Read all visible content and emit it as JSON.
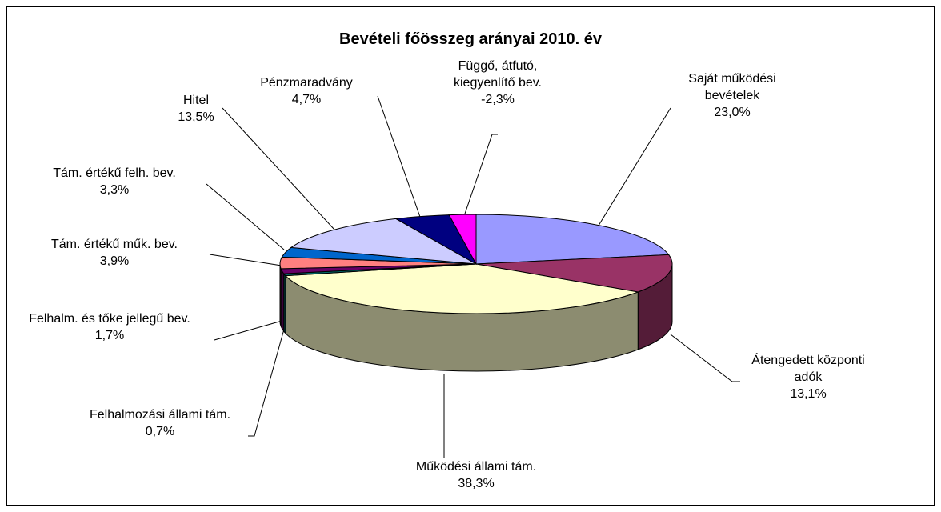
{
  "chart_data": {
    "type": "pie3d",
    "title": "Bevételi főösszeg arányai 2010. év",
    "categories": [
      "Saját működési bevételek",
      "Átengedett központi adók",
      "Működési állami tám.",
      "Felhalmozási állami tám.",
      "Felhalm. és tőke jellegű bev.",
      "Tám. értékű műk. bev.",
      "Tám. értékű felh. bev.",
      "Hitel",
      "Pénzmaradvány",
      "Függő, átfutó, kiegyenlítő bev."
    ],
    "values": [
      23.0,
      13.1,
      38.3,
      0.7,
      1.7,
      3.9,
      3.3,
      13.5,
      4.7,
      -2.3
    ],
    "value_labels": [
      "23,0%",
      "13,1%",
      "38,3%",
      "0,7%",
      "1,7%",
      "3,9%",
      "3,3%",
      "13,5%",
      "4,7%",
      "-2,3%"
    ],
    "colors": [
      "#9999ff",
      "#993366",
      "#ffffcc",
      "#006666",
      "#660066",
      "#ff8080",
      "#0066cc",
      "#ccccff",
      "#000080",
      "#ff00ff"
    ]
  }
}
